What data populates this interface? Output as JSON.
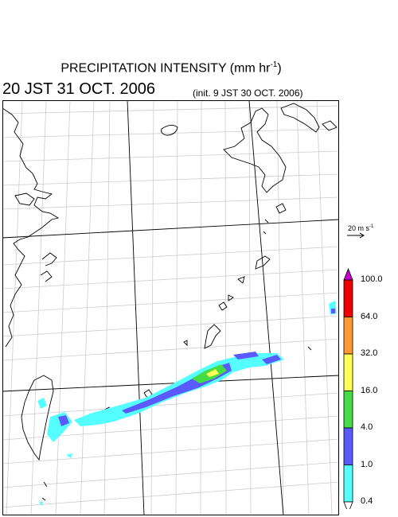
{
  "title": {
    "main": "PRECIPITATION INTENSITY (mm hr",
    "unit_sup": "-1",
    "close": ")"
  },
  "valid_time": "20 JST 31 OCT. 2006",
  "init_time": "(init. 9 JST 30 OCT. 2006)",
  "vector_legend": {
    "label": "20 m s",
    "sup": "-1"
  },
  "colorbar": {
    "ticks": [
      "100.0",
      "64.0",
      "32.0",
      "16.0",
      "4.0",
      "1.0",
      "0.4"
    ],
    "colors": [
      "#cc00cc",
      "#ee0000",
      "#ff9933",
      "#ffff55",
      "#44dd44",
      "#5a5aff",
      "#55ffff",
      "#ffffff"
    ]
  }
}
